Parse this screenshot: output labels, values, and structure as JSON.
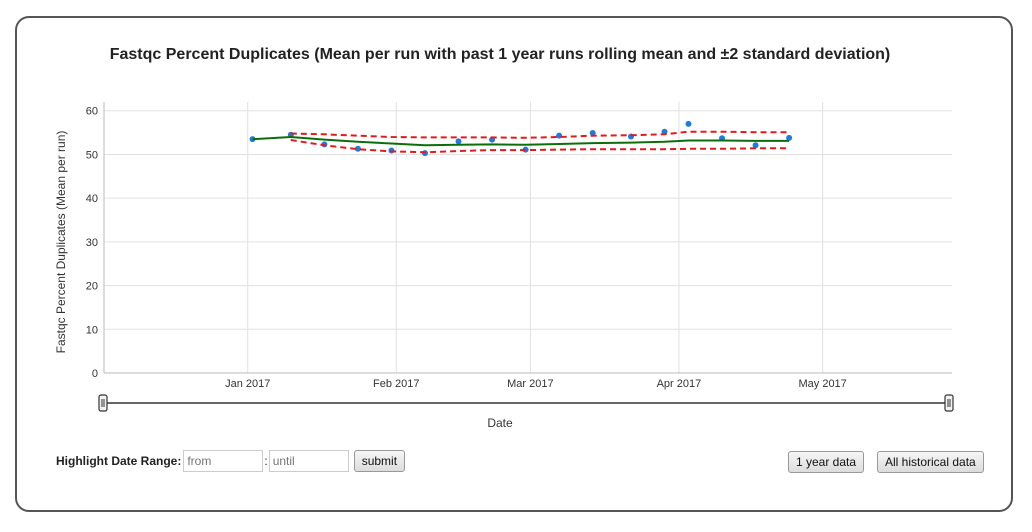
{
  "chart_data": {
    "type": "line",
    "title": "Fastqc Percent Duplicates (Mean per run with past 1 year runs rolling mean and ±2 standard deviation)",
    "xlabel": "Date",
    "ylabel": "Fastqc Percent Duplicates (Mean per run)",
    "ylim": [
      0,
      62
    ],
    "xlim": [
      "2016-12-02",
      "2017-05-28"
    ],
    "x_ticks": [
      "2017-01-01",
      "2017-02-01",
      "2017-03-01",
      "2017-04-01",
      "2017-05-01"
    ],
    "x_tick_labels": [
      "Jan 2017",
      "Feb 2017",
      "Mar 2017",
      "Apr 2017",
      "May 2017"
    ],
    "y_ticks": [
      0,
      10,
      20,
      30,
      40,
      50,
      60
    ],
    "grid": true,
    "legend": "none",
    "series": [
      {
        "style": "points",
        "color": "#1e7be0",
        "x": [
          "2017-01-02",
          "2017-01-10",
          "2017-01-17",
          "2017-01-24",
          "2017-01-31",
          "2017-02-07",
          "2017-02-14",
          "2017-02-21",
          "2017-02-28",
          "2017-03-07",
          "2017-03-14",
          "2017-03-22",
          "2017-03-29",
          "2017-04-03",
          "2017-04-10",
          "2017-04-17",
          "2017-04-24"
        ],
        "values": [
          53.5,
          54.5,
          52.3,
          51.3,
          50.9,
          50.3,
          53.0,
          53.4,
          51.1,
          54.3,
          54.9,
          54.1,
          55.2,
          57.0,
          53.7,
          52.1,
          53.8
        ]
      },
      {
        "style": "solid",
        "color": "#0b6e0b",
        "x": [
          "2017-01-02",
          "2017-01-10",
          "2017-01-17",
          "2017-01-24",
          "2017-01-31",
          "2017-02-07",
          "2017-02-14",
          "2017-02-21",
          "2017-02-28",
          "2017-03-07",
          "2017-03-14",
          "2017-03-22",
          "2017-03-29",
          "2017-04-03",
          "2017-04-10",
          "2017-04-17",
          "2017-04-24"
        ],
        "values": [
          53.5,
          54.0,
          53.4,
          52.9,
          52.5,
          52.1,
          52.2,
          52.3,
          52.2,
          52.4,
          52.6,
          52.7,
          52.9,
          53.2,
          53.2,
          53.1,
          53.1
        ]
      },
      {
        "style": "dashed",
        "color": "#e41a1a",
        "x": [
          "2017-01-10",
          "2017-01-17",
          "2017-01-24",
          "2017-01-31",
          "2017-02-07",
          "2017-02-14",
          "2017-02-21",
          "2017-02-28",
          "2017-03-07",
          "2017-03-14",
          "2017-03-22",
          "2017-03-29",
          "2017-04-03",
          "2017-04-10",
          "2017-04-17",
          "2017-04-24"
        ],
        "values": [
          54.8,
          54.6,
          54.3,
          54.0,
          53.9,
          53.9,
          53.9,
          53.8,
          54.0,
          54.3,
          54.4,
          54.6,
          55.2,
          55.2,
          55.1,
          55.1
        ]
      },
      {
        "style": "dashed",
        "color": "#e41a1a",
        "x": [
          "2017-01-10",
          "2017-01-17",
          "2017-01-24",
          "2017-01-31",
          "2017-02-07",
          "2017-02-14",
          "2017-02-21",
          "2017-02-28",
          "2017-03-07",
          "2017-03-14",
          "2017-03-22",
          "2017-03-29",
          "2017-04-03",
          "2017-04-10",
          "2017-04-17",
          "2017-04-24"
        ],
        "values": [
          53.3,
          52.1,
          51.2,
          50.7,
          50.5,
          50.8,
          51.0,
          51.0,
          51.1,
          51.2,
          51.2,
          51.2,
          51.3,
          51.3,
          51.4,
          51.4
        ]
      }
    ]
  },
  "controls": {
    "highlight_label": "Highlight Date Range:",
    "from_placeholder": "from",
    "until_placeholder": "until",
    "separator": ":",
    "submit_label": "submit",
    "one_year_label": "1 year data",
    "all_label": "All historical data"
  }
}
